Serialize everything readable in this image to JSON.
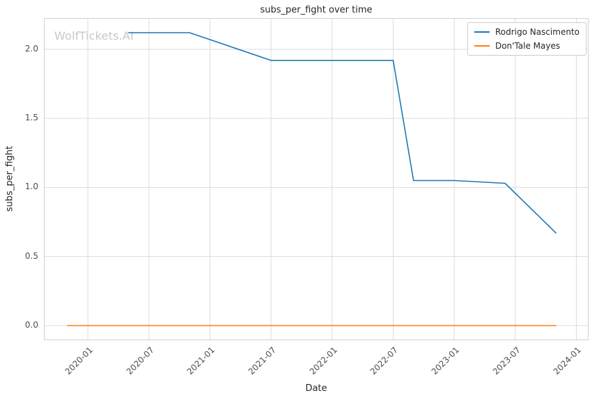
{
  "watermark": "WolfTickets.AI",
  "chart_data": {
    "type": "line",
    "title": "subs_per_fight over time",
    "xlabel": "Date",
    "ylabel": "subs_per_fight",
    "grid": true,
    "legend_position": "top-right",
    "x_tick_labels": [
      "2020-01",
      "2020-07",
      "2021-01",
      "2021-07",
      "2022-01",
      "2022-07",
      "2023-01",
      "2023-07",
      "2024-01"
    ],
    "y_ticks": [
      0.0,
      0.5,
      1.0,
      1.5,
      2.0
    ],
    "x_domain_years": [
      2019.64,
      2024.1
    ],
    "y_domain": [
      -0.106,
      2.226
    ],
    "series": [
      {
        "name": "Rodrigo Nascimento",
        "color": "#1f77b4",
        "points": [
          [
            "2020-05",
            2.12
          ],
          [
            "2020-11",
            2.12
          ],
          [
            "2021-07",
            1.92
          ],
          [
            "2022-07",
            1.92
          ],
          [
            "2022-09",
            1.05
          ],
          [
            "2023-01",
            1.05
          ],
          [
            "2023-06",
            1.03
          ],
          [
            "2023-11",
            0.67
          ]
        ]
      },
      {
        "name": "Don'Tale Mayes",
        "color": "#ff7f0e",
        "points": [
          [
            "2019-11",
            0.0
          ],
          [
            "2023-11",
            0.0
          ]
        ]
      }
    ]
  },
  "colors": {
    "background": "#ffffff",
    "grid": "#dcdcdc",
    "border": "#d0d0d0",
    "title_text": "#262626",
    "tick_text": "#4d4d4d",
    "watermark": "#c7c7c7"
  }
}
